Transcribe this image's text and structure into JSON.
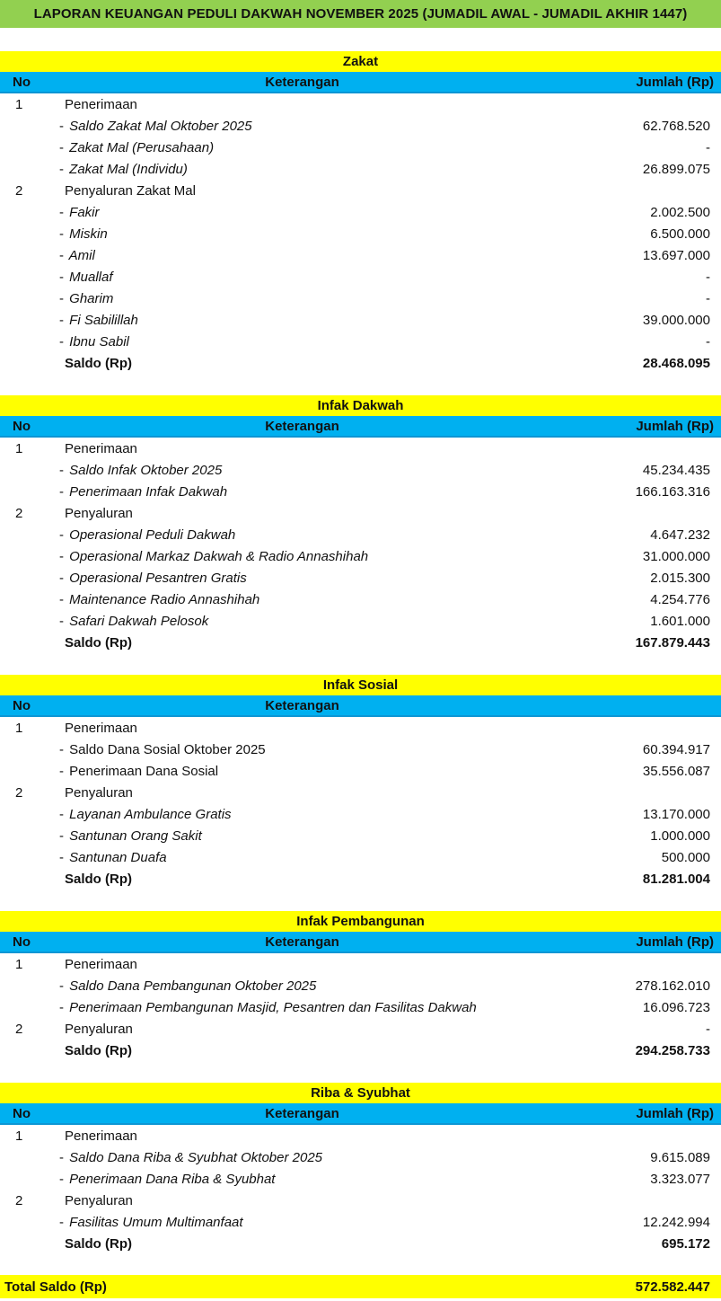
{
  "title": "LAPORAN KEUANGAN PEDULI DAKWAH NOVEMBER 2025 (JUMADIL AWAL - JUMADIL AKHIR 1447)",
  "colors": {
    "title_bar_green": "#92D050",
    "section_yellow": "#FFFF00",
    "header_blue": "#00B0F0",
    "header_blue_border": "#0D96D4",
    "text": "#111111"
  },
  "sections": [
    {
      "id": "zakat",
      "title": "Zakat",
      "headers": {
        "no": "No",
        "keterangan": "Keterangan",
        "jumlah": "Jumlah (Rp)"
      },
      "rows": [
        {
          "no": "1",
          "label": "Penerimaan",
          "type": "main",
          "value": ""
        },
        {
          "no": "",
          "label": "Saldo Zakat Mal Oktober 2025",
          "type": "sub",
          "value": "62.768.520"
        },
        {
          "no": "",
          "label": "Zakat Mal (Perusahaan)",
          "type": "sub",
          "value": "-"
        },
        {
          "no": "",
          "label": "Zakat Mal (Individu)",
          "type": "sub",
          "value": "26.899.075"
        },
        {
          "no": "2",
          "label": "Penyaluran Zakat Mal",
          "type": "main",
          "value": ""
        },
        {
          "no": "",
          "label": "Fakir",
          "type": "sub",
          "value": "2.002.500"
        },
        {
          "no": "",
          "label": "Miskin",
          "type": "sub",
          "value": "6.500.000"
        },
        {
          "no": "",
          "label": "Amil",
          "type": "sub",
          "value": "13.697.000"
        },
        {
          "no": "",
          "label": "Muallaf",
          "type": "sub",
          "value": "-"
        },
        {
          "no": "",
          "label": "Gharim",
          "type": "sub",
          "value": "-"
        },
        {
          "no": "",
          "label": "Fi Sabilillah",
          "type": "sub",
          "value": "39.000.000"
        },
        {
          "no": "",
          "label": "Ibnu Sabil",
          "type": "sub",
          "value": "-"
        },
        {
          "no": "",
          "label": "Saldo (Rp)",
          "type": "saldo",
          "value": "28.468.095"
        }
      ]
    },
    {
      "id": "infak-dakwah",
      "title": "Infak Dakwah",
      "headers": {
        "no": "No",
        "keterangan": "Keterangan",
        "jumlah": "Jumlah (Rp)"
      },
      "rows": [
        {
          "no": "1",
          "label": "Penerimaan",
          "type": "main",
          "value": ""
        },
        {
          "no": "",
          "label": "Saldo Infak Oktober 2025",
          "type": "sub",
          "value": "45.234.435"
        },
        {
          "no": "",
          "label": "Penerimaan Infak Dakwah",
          "type": "sub",
          "value": "166.163.316"
        },
        {
          "no": "2",
          "label": "Penyaluran",
          "type": "main",
          "value": ""
        },
        {
          "no": "",
          "label": "Operasional Peduli Dakwah",
          "type": "sub",
          "value": "4.647.232"
        },
        {
          "no": "",
          "label": "Operasional Markaz Dakwah & Radio Annashihah",
          "type": "sub",
          "value": "31.000.000"
        },
        {
          "no": "",
          "label": "Operasional Pesantren Gratis",
          "type": "sub",
          "value": "2.015.300"
        },
        {
          "no": "",
          "label": "Maintenance Radio Annashihah",
          "type": "sub",
          "value": "4.254.776"
        },
        {
          "no": "",
          "label": "Safari Dakwah Pelosok",
          "type": "sub",
          "value": "1.601.000"
        },
        {
          "no": "",
          "label": "Saldo (Rp)",
          "type": "saldo",
          "value": "167.879.443"
        }
      ]
    },
    {
      "id": "infak-sosial",
      "title": "Infak Sosial",
      "headers": {
        "no": "No",
        "keterangan": "Keterangan",
        "jumlah": ""
      },
      "rows": [
        {
          "no": "1",
          "label": "Penerimaan",
          "type": "main",
          "value": ""
        },
        {
          "no": "",
          "label": "Saldo Dana Sosial Oktober 2025",
          "type": "subplain",
          "value": "60.394.917"
        },
        {
          "no": "",
          "label": "Penerimaan Dana Sosial",
          "type": "subplain",
          "value": "35.556.087"
        },
        {
          "no": "2",
          "label": "Penyaluran",
          "type": "main",
          "value": ""
        },
        {
          "no": "",
          "label": "Layanan Ambulance Gratis",
          "type": "sub",
          "value": "13.170.000"
        },
        {
          "no": "",
          "label": "Santunan Orang Sakit",
          "type": "sub",
          "value": "1.000.000"
        },
        {
          "no": "",
          "label": "Santunan Duafa",
          "type": "sub",
          "value": "500.000"
        },
        {
          "no": "",
          "label": "Saldo (Rp)",
          "type": "saldo",
          "value": "81.281.004"
        }
      ]
    },
    {
      "id": "infak-pembangunan",
      "title": "Infak Pembangunan",
      "headers": {
        "no": "No",
        "keterangan": "Keterangan",
        "jumlah": "Jumlah (Rp)"
      },
      "rows": [
        {
          "no": "1",
          "label": "Penerimaan",
          "type": "main",
          "value": ""
        },
        {
          "no": "",
          "label": "Saldo Dana Pembangunan Oktober 2025",
          "type": "sub",
          "value": "278.162.010"
        },
        {
          "no": "",
          "label": "Penerimaan Pembangunan Masjid, Pesantren dan Fasilitas Dakwah",
          "type": "sub",
          "value": "16.096.723"
        },
        {
          "no": "2",
          "label": "Penyaluran",
          "type": "main",
          "value": "-"
        },
        {
          "no": "",
          "label": "Saldo (Rp)",
          "type": "saldo",
          "value": "294.258.733"
        }
      ]
    },
    {
      "id": "riba-syubhat",
      "title": "Riba & Syubhat",
      "headers": {
        "no": "No",
        "keterangan": "Keterangan",
        "jumlah": "Jumlah (Rp)"
      },
      "rows": [
        {
          "no": "1",
          "label": "Penerimaan",
          "type": "main",
          "value": ""
        },
        {
          "no": "",
          "label": "Saldo Dana Riba & Syubhat Oktober 2025",
          "type": "sub",
          "value": "9.615.089"
        },
        {
          "no": "",
          "label": "Penerimaan Dana Riba & Syubhat",
          "type": "sub",
          "value": "3.323.077"
        },
        {
          "no": "2",
          "label": "Penyaluran",
          "type": "main",
          "value": ""
        },
        {
          "no": "",
          "label": "Fasilitas Umum Multimanfaat",
          "type": "sub",
          "value": "12.242.994"
        },
        {
          "no": "",
          "label": "Saldo (Rp)",
          "type": "saldo",
          "value": "695.172"
        }
      ]
    }
  ],
  "total": {
    "label": "Total Saldo (Rp)",
    "value": "572.582.447"
  }
}
